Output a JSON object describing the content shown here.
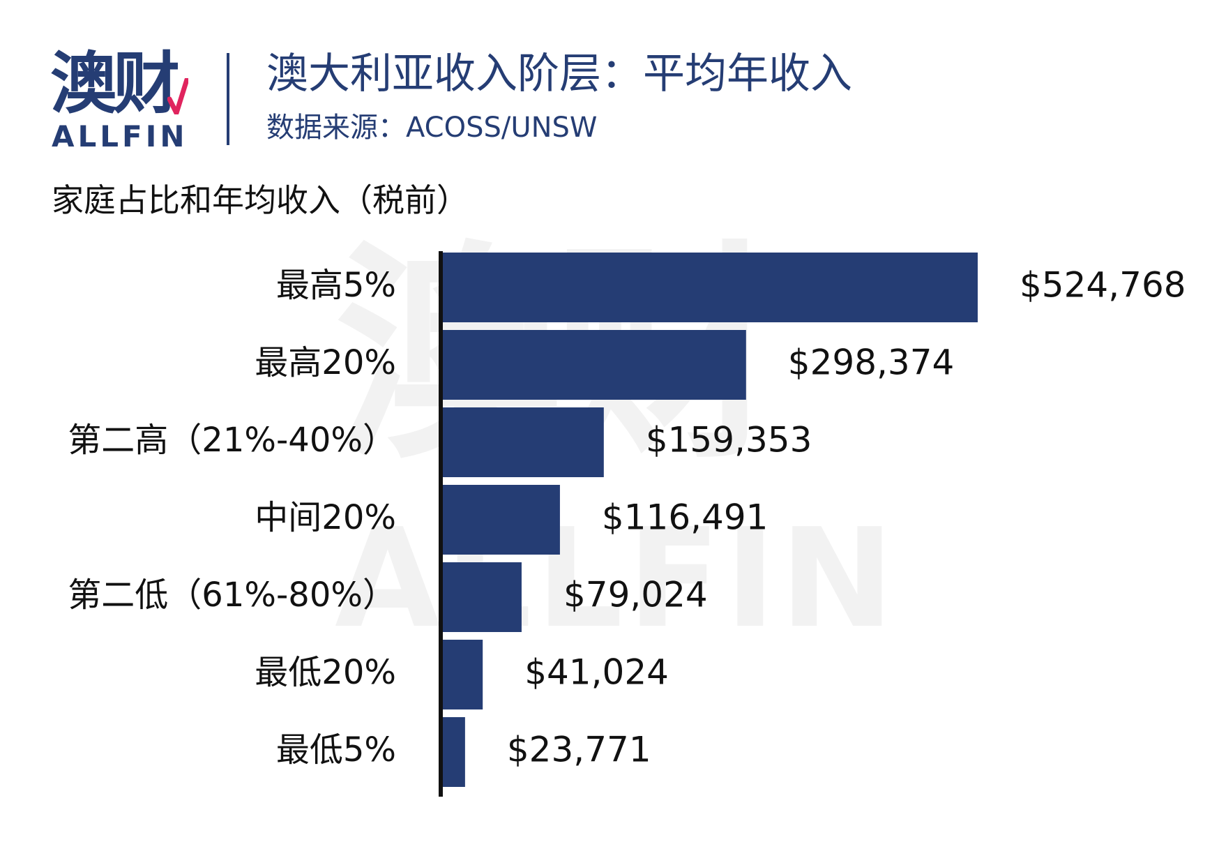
{
  "header": {
    "logo_cn": "澳财",
    "logo_en": "ALLFIN",
    "title": "澳大利亚收入阶层：平均年收入",
    "source": "数据来源：ACOSS/UNSW"
  },
  "colors": {
    "brand": "#253d74",
    "bar": "#253d74",
    "accent": "#e0245e"
  },
  "chart_data": {
    "type": "bar",
    "orientation": "horizontal",
    "title": "家庭占比和年均收入（税前）",
    "categories": [
      "最高5%",
      "最高20%",
      "第二高（21%-40%）",
      "中间20%",
      "第二低（61%-80%）",
      "最低20%",
      "最低5%"
    ],
    "values": [
      524768,
      298374,
      159353,
      116491,
      79024,
      41024,
      23771
    ],
    "value_labels": [
      "$524,768",
      "$298,374",
      "$159,353",
      "$116,491",
      "$79,024",
      "$41,024",
      "$23,771"
    ],
    "xlabel": "",
    "ylabel": "",
    "grid": false,
    "legend": "none"
  }
}
